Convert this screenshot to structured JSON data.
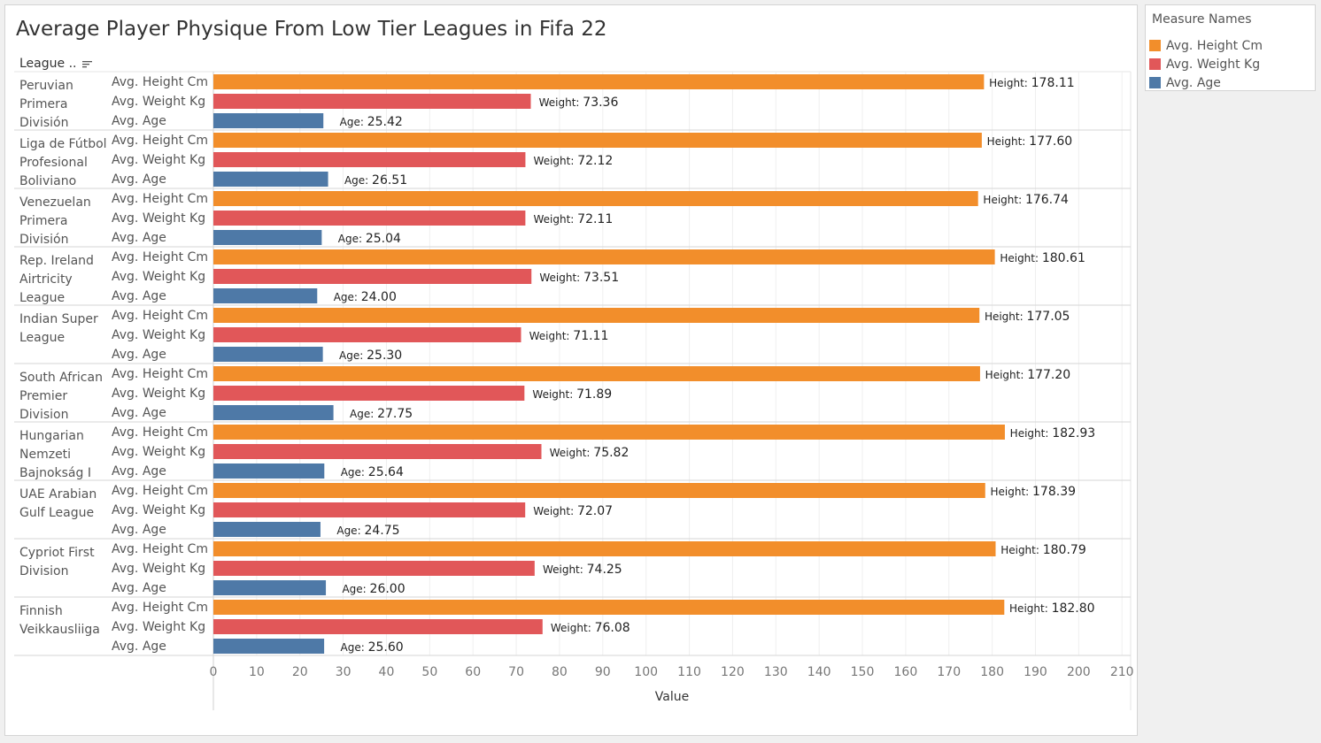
{
  "chart_data": {
    "type": "bar",
    "title": "Average Player Physique From Low Tier Leagues in Fifa 22",
    "row_header": "League ..",
    "xlabel": "Value",
    "xlim": [
      0,
      212
    ],
    "xticks": [
      0,
      10,
      20,
      30,
      40,
      50,
      60,
      70,
      80,
      90,
      100,
      110,
      120,
      130,
      140,
      150,
      160,
      170,
      180,
      190,
      200,
      210
    ],
    "grid": true,
    "legend_position": "top-right",
    "measures": [
      {
        "name": "Avg. Height Cm",
        "label_prefix": "Height:",
        "color": "#f28e2b"
      },
      {
        "name": "Avg. Weight Kg",
        "label_prefix": "Weight:",
        "color": "#e15759"
      },
      {
        "name": "Avg. Age",
        "label_prefix": "Age:",
        "color": "#4e79a7"
      }
    ],
    "categories": [
      "Peruvian Primera División",
      "Liga de Fútbol Profesional Boliviano",
      "Venezuelan Primera División",
      "Rep. Ireland Airtricity League",
      "Indian Super League",
      "South African Premier Division",
      "Hungarian Nemzeti Bajnokság I",
      "UAE Arabian Gulf League",
      "Cypriot First Division",
      "Finnish Veikkausliiga"
    ],
    "category_lines": [
      [
        "Peruvian",
        "Primera",
        "División"
      ],
      [
        "Liga de Fútbol",
        "Profesional",
        "Boliviano"
      ],
      [
        "Venezuelan",
        "Primera",
        "División"
      ],
      [
        "Rep. Ireland",
        "Airtricity",
        "League"
      ],
      [
        "Indian Super",
        "League"
      ],
      [
        "South African",
        "Premier",
        "Division"
      ],
      [
        "Hungarian",
        "Nemzeti",
        "Bajnokság I"
      ],
      [
        "UAE Arabian",
        "Gulf League"
      ],
      [
        "Cypriot First",
        "Division"
      ],
      [
        "Finnish",
        "Veikkausliiga"
      ]
    ],
    "series": [
      {
        "name": "Avg. Height Cm",
        "values": [
          178.11,
          177.6,
          176.74,
          180.61,
          177.05,
          177.2,
          182.93,
          178.39,
          180.79,
          182.8
        ]
      },
      {
        "name": "Avg. Weight Kg",
        "values": [
          73.36,
          72.12,
          72.11,
          73.51,
          71.11,
          71.89,
          75.82,
          72.07,
          74.25,
          76.08
        ]
      },
      {
        "name": "Avg. Age",
        "values": [
          25.42,
          26.51,
          25.04,
          24.0,
          25.3,
          27.75,
          25.64,
          24.75,
          26.0,
          25.6
        ]
      }
    ]
  },
  "legend": {
    "title": "Measure Names",
    "items": [
      {
        "label": "Avg. Height Cm",
        "color": "#f28e2b"
      },
      {
        "label": "Avg. Weight Kg",
        "color": "#e15759"
      },
      {
        "label": "Avg. Age",
        "color": "#4e79a7"
      }
    ]
  },
  "sort_icon": "sort-descending-icon"
}
